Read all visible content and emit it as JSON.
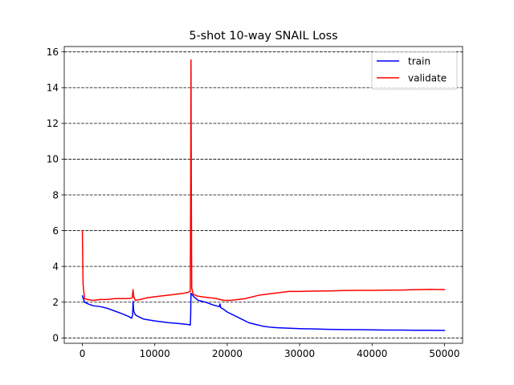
{
  "chart_data": {
    "type": "line",
    "title": "5-shot 10-way SNAIL Loss",
    "xlabel": "",
    "ylabel": "",
    "xlim": [
      -2500,
      52500
    ],
    "ylim": [
      -0.3,
      16.3
    ],
    "xticks": [
      0,
      10000,
      20000,
      30000,
      40000,
      50000
    ],
    "yticks": [
      0,
      2,
      4,
      6,
      8,
      10,
      12,
      14,
      16
    ],
    "grid": {
      "axis": "y",
      "style": "dashed",
      "color": "#000000"
    },
    "legend": {
      "placement": "top-right"
    },
    "series": [
      {
        "name": "train",
        "color": "#0000ff",
        "x": [
          0,
          300,
          800,
          1500,
          2500,
          3500,
          4500,
          5500,
          6400,
          6800,
          6950,
          7000,
          7100,
          7300,
          7700,
          8500,
          10000,
          12000,
          13500,
          14600,
          14900,
          14950,
          15000,
          15100,
          15400,
          16000,
          17000,
          18000,
          18900,
          19000,
          19100,
          19500,
          20000,
          21000,
          22000,
          23000,
          24000,
          25000,
          26000,
          27000,
          28000,
          30000,
          32000,
          34000,
          36000,
          38000,
          40000,
          42000,
          44000,
          46000,
          48000,
          50000
        ],
        "y": [
          2.35,
          2.0,
          1.9,
          1.8,
          1.75,
          1.65,
          1.5,
          1.35,
          1.2,
          1.1,
          1.3,
          2.05,
          1.5,
          1.3,
          1.2,
          1.05,
          0.95,
          0.85,
          0.8,
          0.75,
          0.72,
          1.2,
          2.5,
          2.45,
          2.3,
          2.1,
          2.0,
          1.85,
          1.75,
          1.9,
          1.7,
          1.6,
          1.45,
          1.25,
          1.05,
          0.85,
          0.75,
          0.65,
          0.6,
          0.57,
          0.55,
          0.52,
          0.5,
          0.48,
          0.47,
          0.46,
          0.45,
          0.44,
          0.44,
          0.43,
          0.43,
          0.42
        ]
      },
      {
        "name": "validate",
        "color": "#ff0000",
        "x": [
          0,
          100,
          300,
          700,
          1500,
          2500,
          3500,
          4500,
          5500,
          6500,
          6900,
          7000,
          7100,
          7300,
          8000,
          9000,
          10000,
          11000,
          12000,
          13000,
          14000,
          14600,
          14900,
          14950,
          15000,
          15050,
          15100,
          15300,
          15800,
          16500,
          17500,
          18500,
          19500,
          20500,
          21500,
          22500,
          23500,
          24500,
          25500,
          26500,
          27500,
          28500,
          30000,
          32000,
          34000,
          36000,
          38000,
          40000,
          42000,
          44000,
          46000,
          48000,
          50000
        ],
        "y": [
          6.0,
          3.0,
          2.2,
          2.15,
          2.1,
          2.15,
          2.15,
          2.2,
          2.2,
          2.2,
          2.25,
          2.7,
          2.3,
          2.1,
          2.15,
          2.25,
          2.3,
          2.35,
          2.4,
          2.45,
          2.5,
          2.55,
          2.6,
          8.0,
          15.55,
          8.0,
          2.8,
          2.45,
          2.35,
          2.3,
          2.25,
          2.2,
          2.1,
          2.1,
          2.15,
          2.2,
          2.3,
          2.4,
          2.45,
          2.5,
          2.55,
          2.6,
          2.6,
          2.62,
          2.63,
          2.65,
          2.66,
          2.66,
          2.67,
          2.68,
          2.7,
          2.72,
          2.7
        ]
      }
    ]
  }
}
